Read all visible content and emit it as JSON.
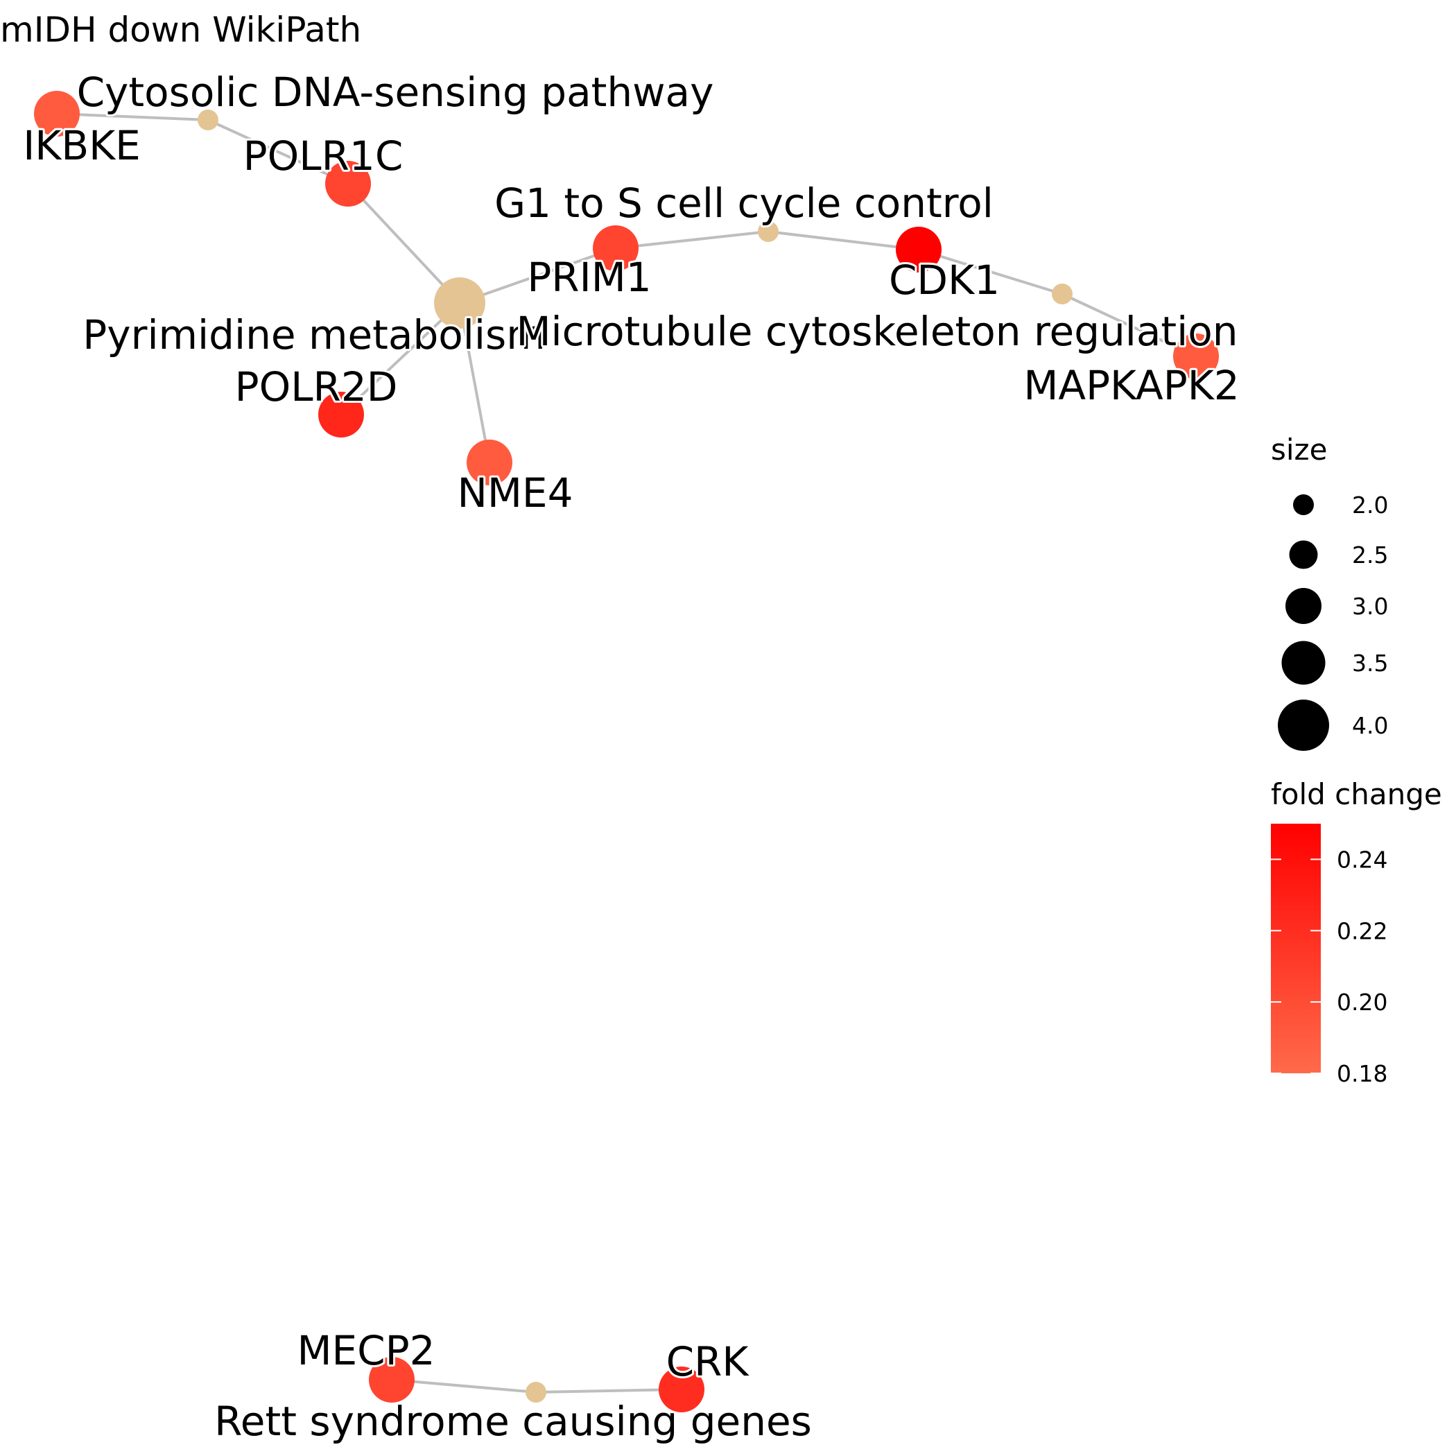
{
  "title": "mIDH down WikiPath",
  "colors": {
    "pathway_node": "#E5C494",
    "edge": "#BEBEBE",
    "gene_low": "#FF6A4A",
    "gene_high": "#FF0000"
  },
  "nodes": [
    {
      "id": "cytosolic",
      "type": "pathway",
      "label": "Cytosolic DNA-sensing pathway",
      "size": 2
    },
    {
      "id": "pyrimidine",
      "type": "pathway",
      "label": "Pyrimidine metabolism",
      "size": 4
    },
    {
      "id": "g1s",
      "type": "pathway",
      "label": "G1 to S cell cycle control",
      "size": 2
    },
    {
      "id": "microtubule",
      "type": "pathway",
      "label": "Microtubule cytoskeleton regulation",
      "size": 2
    },
    {
      "id": "rett",
      "type": "pathway",
      "label": "Rett syndrome causing genes",
      "size": 2
    },
    {
      "id": "IKBKE",
      "type": "gene",
      "label": "IKBKE",
      "fold_change": 0.19
    },
    {
      "id": "POLR1C",
      "type": "gene",
      "label": "POLR1C",
      "fold_change": 0.205
    },
    {
      "id": "PRIM1",
      "type": "gene",
      "label": "PRIM1",
      "fold_change": 0.205
    },
    {
      "id": "CDK1",
      "type": "gene",
      "label": "CDK1",
      "fold_change": 0.25
    },
    {
      "id": "MAPKAPK2",
      "type": "gene",
      "label": "MAPKAPK2",
      "fold_change": 0.19
    },
    {
      "id": "POLR2D",
      "type": "gene",
      "label": "POLR2D",
      "fold_change": 0.225
    },
    {
      "id": "NME4",
      "type": "gene",
      "label": "NME4",
      "fold_change": 0.19
    },
    {
      "id": "MECP2",
      "type": "gene",
      "label": "MECP2",
      "fold_change": 0.205
    },
    {
      "id": "CRK",
      "type": "gene",
      "label": "CRK",
      "fold_change": 0.22
    }
  ],
  "edges": [
    {
      "source": "IKBKE",
      "target": "cytosolic"
    },
    {
      "source": "cytosolic",
      "target": "POLR1C"
    },
    {
      "source": "POLR1C",
      "target": "pyrimidine"
    },
    {
      "source": "pyrimidine",
      "target": "PRIM1"
    },
    {
      "source": "pyrimidine",
      "target": "POLR2D"
    },
    {
      "source": "pyrimidine",
      "target": "NME4"
    },
    {
      "source": "PRIM1",
      "target": "g1s"
    },
    {
      "source": "g1s",
      "target": "CDK1"
    },
    {
      "source": "CDK1",
      "target": "microtubule"
    },
    {
      "source": "microtubule",
      "target": "MAPKAPK2"
    },
    {
      "source": "MECP2",
      "target": "rett"
    },
    {
      "source": "rett",
      "target": "CRK"
    }
  ],
  "legend": {
    "size_title": "size",
    "size_values": [
      "2.0",
      "2.5",
      "3.0",
      "3.5",
      "4.0"
    ],
    "color_title": "fold change",
    "color_ticks": [
      "0.24",
      "0.22",
      "0.20",
      "0.18"
    ],
    "color_range": [
      0.18,
      0.25
    ]
  }
}
